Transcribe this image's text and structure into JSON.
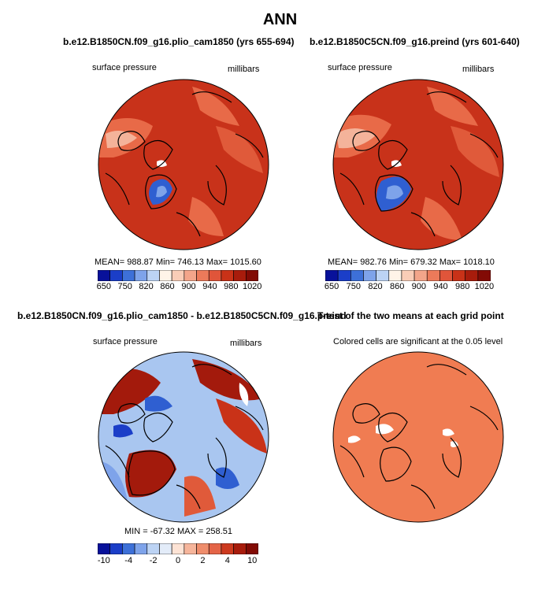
{
  "title": "ANN",
  "panels": {
    "top_left": {
      "case": "b.e12.B1850CN.f09_g16.plio_cam1850 (yrs 655-694)",
      "variable": "surface pressure",
      "units": "millibars",
      "stats": "MEAN= 988.87   Min= 746.13   Max= 1015.60"
    },
    "top_right": {
      "case": "b.e12.B1850C5CN.f09_g16.preind (yrs 601-640)",
      "variable": "surface pressure",
      "units": "millibars",
      "stats": "MEAN= 982.76   Min= 679.32   Max= 1018.10"
    },
    "bottom_left": {
      "case": "b.e12.B1850CN.f09_g16.plio_cam1850 - b.e12.B1850C5CN.f09_g16.preind",
      "variable": "surface pressure",
      "units": "millibars",
      "stats": "MIN = -67.32  MAX = 258.51"
    },
    "bottom_right": {
      "case": "T-test of the two means at each grid point",
      "note": "Colored cells are significant at the 0.05 level"
    }
  },
  "colorbar_abs": {
    "labels": [
      "650",
      "750",
      "820",
      "860",
      "900",
      "940",
      "980",
      "1020"
    ],
    "colors": [
      "#08119a",
      "#1b3ec8",
      "#3d70d8",
      "#7ea3ea",
      "#bcd3f4",
      "#fff4e8",
      "#f9cdb7",
      "#f3a58a",
      "#ec7a5a",
      "#e0553a",
      "#c93218",
      "#a81c0c",
      "#820b05"
    ]
  },
  "colorbar_diff": {
    "labels": [
      "-10",
      "-4",
      "-2",
      "0",
      "2",
      "4",
      "10"
    ],
    "colors": [
      "#08119a",
      "#1b3ec8",
      "#3d70d8",
      "#7ea3ea",
      "#bcd3f4",
      "#e3ecf9",
      "#fde3d5",
      "#f6b59b",
      "#ef8d6c",
      "#e46447",
      "#cd3a1f",
      "#a81c0c",
      "#820b05"
    ]
  },
  "map_colors": {
    "high": "#c8321a",
    "mid": "#e05a3a",
    "low_blue": "#2f5fd1",
    "diff_bg": "#a9c6f0",
    "diff_pos": "#a31a0c",
    "sig": "#f07c52",
    "land": "#000000"
  }
}
